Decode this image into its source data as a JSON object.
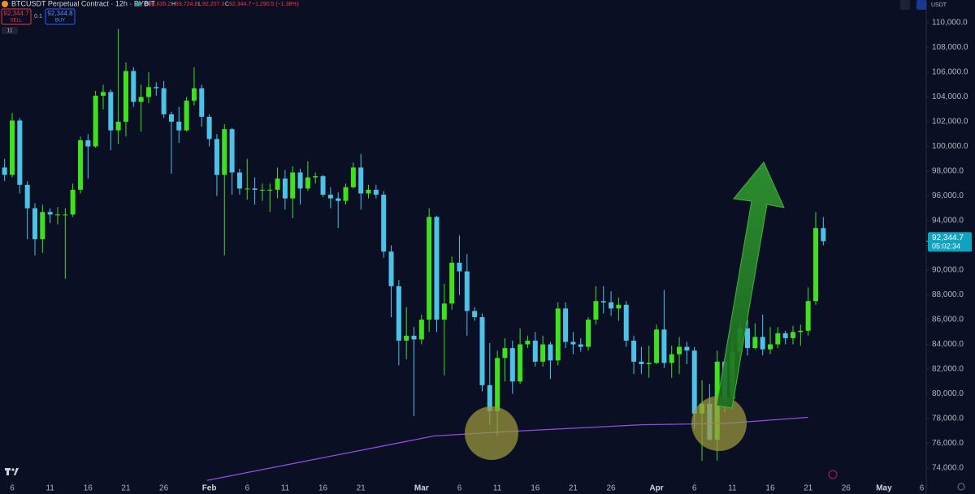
{
  "header": {
    "symbol": "BTCUSDT Perpetual Contract · 12h · BYBIT",
    "ohlc": [
      {
        "key": "O",
        "value": "93,635.2"
      },
      {
        "key": "H",
        "value": "93,724.8"
      },
      {
        "key": "L",
        "value": "92,207.3"
      },
      {
        "key": "C",
        "value": "92,344.7"
      }
    ],
    "change": "−1,290.5 (−1.38%)",
    "sell_price": "92,344.7",
    "sell": "SELL",
    "spread": "0.1",
    "buy_price": "92,344.8",
    "buy": "BUY",
    "indicator_count": "11",
    "currency": "USDT"
  },
  "chart_data": {
    "type": "candlestick",
    "up_color": "#3fe01f",
    "down_color": "#4cc3e6",
    "x": [
      5,
      6,
      7,
      8,
      9,
      10,
      11,
      12,
      13,
      14,
      15,
      16,
      17,
      18,
      19,
      20,
      21,
      22,
      23,
      24,
      25,
      26,
      27,
      28,
      29,
      30,
      31,
      32,
      33,
      34,
      35,
      36,
      37,
      38,
      39,
      40,
      41,
      42,
      43,
      44,
      45,
      46,
      47,
      48,
      49,
      50,
      51,
      52,
      53,
      54,
      55,
      56,
      57,
      58,
      59,
      60,
      61,
      62,
      63,
      64,
      65,
      66,
      67,
      68,
      69,
      70,
      71,
      72,
      73,
      74,
      75,
      76,
      77,
      78,
      79,
      80,
      81,
      82,
      83,
      84,
      85,
      86,
      87,
      88,
      89,
      90,
      91,
      92,
      93,
      94,
      95,
      96,
      97,
      98,
      99,
      100,
      101,
      102,
      103,
      104,
      105,
      106,
      107,
      108,
      109,
      110,
      111,
      112,
      113
    ],
    "open": [
      98300,
      97700,
      102100,
      96900,
      95000,
      92500,
      94700,
      94500,
      94500,
      94500,
      96500,
      100500,
      100000,
      104100,
      104400,
      101300,
      102000,
      106100,
      103600,
      104000,
      104800,
      104700,
      102600,
      102000,
      101300,
      103700,
      104700,
      102400,
      100600,
      97700,
      101400,
      97900,
      96600,
      96600,
      96500,
      96500,
      96500,
      97400,
      95800,
      97900,
      96600,
      97500,
      97600,
      96100,
      95800,
      95600,
      96700,
      98300,
      96200,
      96500,
      96100,
      91500,
      88700,
      84300,
      84700,
      84400,
      86000,
      94300,
      86000,
      87300,
      90600,
      89900,
      86700,
      86200,
      80700,
      78600,
      82900,
      83700,
      81000,
      84000,
      84300,
      82600,
      84000,
      82700,
      86900,
      84200,
      84000,
      83800,
      86000,
      87500,
      87400,
      86900,
      87200,
      84300,
      82600,
      82400,
      82500,
      85200,
      82500,
      83200,
      83800,
      83500,
      78400,
      79200,
      76300,
      82600,
      79600,
      83400,
      85300,
      83700,
      84600,
      83600,
      84000,
      84900,
      84500,
      85000,
      85100,
      87500,
      93400
    ],
    "high": [
      99000,
      102700,
      102300,
      97200,
      95400,
      95300,
      95000,
      95100,
      95000,
      97000,
      100800,
      101000,
      104500,
      105000,
      104600,
      109500,
      106800,
      106400,
      105000,
      106000,
      105200,
      105300,
      102800,
      103200,
      104000,
      106400,
      105000,
      102600,
      101000,
      101800,
      101500,
      98200,
      99000,
      97500,
      97000,
      97000,
      98300,
      98100,
      98400,
      98200,
      98800,
      97900,
      97700,
      96700,
      96300,
      97000,
      98700,
      99400,
      96900,
      96900,
      96400,
      92000,
      89200,
      87000,
      85400,
      86400,
      95000,
      94400,
      88900,
      91100,
      92800,
      91300,
      87000,
      86500,
      84100,
      83500,
      84500,
      84300,
      85300,
      84700,
      85000,
      84700,
      84200,
      87400,
      87400,
      85000,
      84500,
      86200,
      88700,
      88700,
      88300,
      87800,
      87500,
      84700,
      83800,
      83900,
      85600,
      88400,
      83900,
      84600,
      84200,
      83800,
      81100,
      80800,
      83500,
      82800,
      84200,
      85800,
      86000,
      85700,
      86400,
      85400,
      85400,
      85100,
      85500,
      85600,
      88600,
      94700,
      94300
    ],
    "low": [
      97200,
      97500,
      96200,
      92500,
      91200,
      91400,
      93800,
      93700,
      89300,
      94300,
      96200,
      97400,
      99900,
      103000,
      99700,
      100200,
      100800,
      103200,
      101200,
      103500,
      104100,
      102300,
      97800,
      100300,
      101200,
      103300,
      101600,
      100000,
      96000,
      91200,
      96100,
      96100,
      95700,
      95300,
      95600,
      94700,
      95800,
      94900,
      94200,
      95300,
      96400,
      97000,
      95900,
      95000,
      93400,
      95300,
      96600,
      94900,
      95800,
      95800,
      91000,
      86200,
      82300,
      82800,
      78200,
      84000,
      85000,
      85000,
      81500,
      86800,
      88000,
      84700,
      85900,
      80200,
      77500,
      76600,
      81000,
      80000,
      80800,
      83700,
      82200,
      82200,
      81200,
      82300,
      83700,
      83200,
      83400,
      83500,
      85600,
      86500,
      86300,
      85900,
      83800,
      81600,
      81600,
      81300,
      82400,
      82100,
      81300,
      81600,
      82400,
      77200,
      74600,
      76200,
      74600,
      78500,
      78800,
      82800,
      83100,
      83600,
      83100,
      83200,
      83700,
      84000,
      84000,
      83900,
      84700,
      87200,
      92000
    ],
    "close": [
      97700,
      102100,
      96900,
      95000,
      92500,
      94700,
      94500,
      94500,
      94500,
      96500,
      100500,
      100000,
      104100,
      104400,
      101300,
      102000,
      106100,
      103600,
      104000,
      104800,
      104700,
      102600,
      102000,
      101300,
      103700,
      104700,
      102400,
      100600,
      97700,
      101400,
      97900,
      96600,
      96600,
      96500,
      96500,
      96500,
      97400,
      95800,
      97900,
      96600,
      97500,
      97600,
      96100,
      95800,
      95600,
      96700,
      98300,
      96200,
      96500,
      96100,
      91500,
      88700,
      84300,
      84700,
      84400,
      86000,
      94300,
      86000,
      87300,
      90600,
      89900,
      86700,
      86200,
      80700,
      78600,
      82900,
      83700,
      81000,
      84000,
      84300,
      82600,
      84000,
      82700,
      86900,
      84200,
      84000,
      83800,
      86000,
      87500,
      87400,
      86900,
      87200,
      84300,
      82600,
      82400,
      82500,
      85200,
      82500,
      83200,
      83800,
      83500,
      78400,
      79200,
      76300,
      82600,
      79600,
      83400,
      85300,
      83700,
      84600,
      83600,
      84000,
      84900,
      84500,
      85000,
      85100,
      87500,
      93400,
      92344.7
    ],
    "moving_average": {
      "color": "#8e4fe0",
      "x": [
        31.7,
        61.7,
        73,
        89,
        99.8,
        111
      ],
      "values": [
        73000,
        76600,
        77000,
        77500,
        77600,
        78100
      ]
    },
    "last_price": {
      "value": 92344.7,
      "label": "92,344.7"
    },
    "countdown": "05:02:34",
    "xlim": [
      4.39,
      126.58
    ],
    "ylim": [
      73280,
      111840
    ],
    "xticks": [
      {
        "value": 6,
        "label": "6"
      },
      {
        "value": 11,
        "label": "11"
      },
      {
        "value": 16,
        "label": "16"
      },
      {
        "value": 21,
        "label": "21"
      },
      {
        "value": 26,
        "label": "26"
      },
      {
        "value": 32,
        "label": "Feb"
      },
      {
        "value": 37,
        "label": "6"
      },
      {
        "value": 42,
        "label": "11"
      },
      {
        "value": 47,
        "label": "16"
      },
      {
        "value": 52,
        "label": "21"
      },
      {
        "value": 60,
        "label": "Mar"
      },
      {
        "value": 65,
        "label": "6"
      },
      {
        "value": 70,
        "label": "11"
      },
      {
        "value": 75,
        "label": "16"
      },
      {
        "value": 80,
        "label": "21"
      },
      {
        "value": 85,
        "label": "26"
      },
      {
        "value": 91,
        "label": "Apr"
      },
      {
        "value": 96,
        "label": "6"
      },
      {
        "value": 101,
        "label": "11"
      },
      {
        "value": 106,
        "label": "16"
      },
      {
        "value": 111,
        "label": "21"
      },
      {
        "value": 116,
        "label": "26"
      },
      {
        "value": 121,
        "label": "May"
      },
      {
        "value": 126,
        "label": "6"
      }
    ],
    "yticks": [
      {
        "value": 74000,
        "label": "74,000.0"
      },
      {
        "value": 76000,
        "label": "76,000.0"
      },
      {
        "value": 78000,
        "label": "78,000.0"
      },
      {
        "value": 80000,
        "label": "80,000.0"
      },
      {
        "value": 82000,
        "label": "82,000.0"
      },
      {
        "value": 84000,
        "label": "84,000.0"
      },
      {
        "value": 86000,
        "label": "86,000.0"
      },
      {
        "value": 88000,
        "label": "88,000.0"
      },
      {
        "value": 90000,
        "label": "90,000.0"
      },
      {
        "value": 92000,
        "label": "92,000.0"
      },
      {
        "value": 94000,
        "label": "94,000.0"
      },
      {
        "value": 96000,
        "label": "96,000.0"
      },
      {
        "value": 98000,
        "label": "98,000.0"
      },
      {
        "value": 100000,
        "label": "100,000.0"
      },
      {
        "value": 102000,
        "label": "102,000.0"
      },
      {
        "value": 104000,
        "label": "104,000.0"
      },
      {
        "value": 106000,
        "label": "106,000.0"
      },
      {
        "value": 108000,
        "label": "108,000.0"
      },
      {
        "value": 110000,
        "label": "110,000.0"
      }
    ]
  }
}
